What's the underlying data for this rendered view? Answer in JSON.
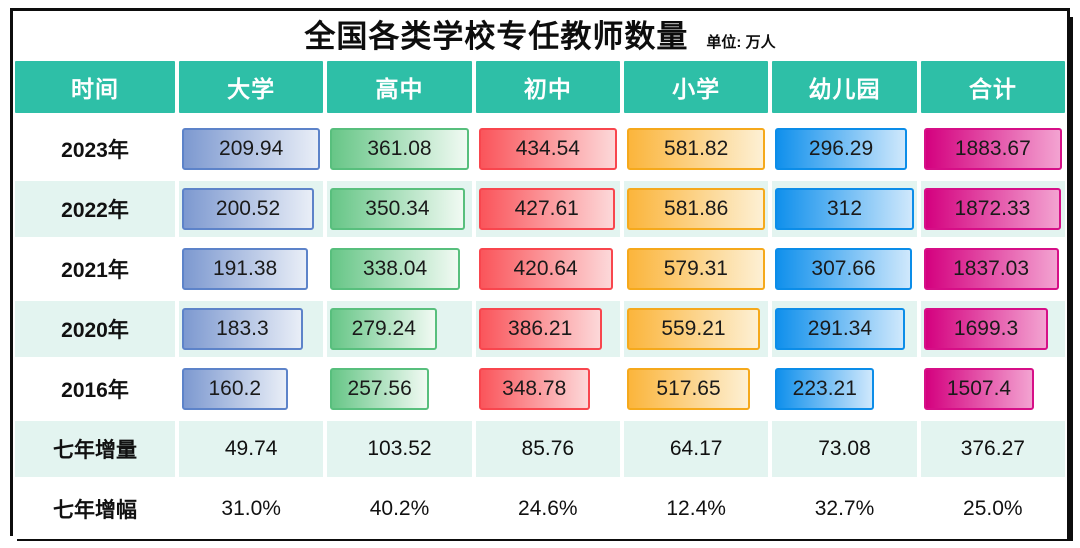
{
  "title": "全国各类学校专任教师数量",
  "unit": "单位: 万人",
  "colors": {
    "header_bg": "#2ebfa7",
    "row_bg": "#ffffff",
    "row_alt_bg": "#e3f4f0",
    "frame_border": "#0d0d0d",
    "bar_text": "#1a1a1a",
    "bar_palettes": [
      {
        "name": "university-blue",
        "border": "#5d83c9",
        "start": "#7d99d0",
        "end": "#e9eef7"
      },
      {
        "name": "highschool-green",
        "border": "#58bf7d",
        "start": "#67c687",
        "end": "#f1faf3"
      },
      {
        "name": "middleschool-red",
        "border": "#f8464e",
        "start": "#fa555b",
        "end": "#fcd8d9"
      },
      {
        "name": "primary-orange",
        "border": "#f5a91c",
        "start": "#fbb53c",
        "end": "#fdf0d4"
      },
      {
        "name": "kindergarten-azure",
        "border": "#0c8de8",
        "start": "#1090ec",
        "end": "#cfe8fc"
      },
      {
        "name": "total-magenta",
        "border": "#d60f87",
        "start": "#d4017f",
        "end": "#f3a3d1"
      }
    ]
  },
  "chart_data": {
    "type": "table",
    "title": "全国各类学校专任教师数量",
    "unit": "万人",
    "columns": [
      "时间",
      "大学",
      "高中",
      "初中",
      "小学",
      "幼儿园",
      "合计"
    ],
    "rows": [
      {
        "label": "2023年",
        "values": [
          209.94,
          361.08,
          434.54,
          581.82,
          296.29,
          1883.67
        ]
      },
      {
        "label": "2022年",
        "values": [
          200.52,
          350.34,
          427.61,
          581.86,
          312,
          1872.33
        ]
      },
      {
        "label": "2021年",
        "values": [
          191.38,
          338.04,
          420.64,
          579.31,
          307.66,
          1837.03
        ]
      },
      {
        "label": "2020年",
        "values": [
          183.3,
          279.24,
          386.21,
          559.21,
          291.34,
          1699.3
        ]
      },
      {
        "label": "2016年",
        "values": [
          160.2,
          257.56,
          348.78,
          517.65,
          223.21,
          1507.4
        ]
      }
    ],
    "summary_rows": [
      {
        "label": "七年增量",
        "values": [
          "49.74",
          "103.52",
          "85.76",
          "64.17",
          "73.08",
          "376.27"
        ]
      },
      {
        "label": "七年增幅",
        "values": [
          "31.0%",
          "40.2%",
          "24.6%",
          "12.4%",
          "32.7%",
          "25.0%"
        ]
      }
    ],
    "layout": {
      "bars_scaled_per_column": true,
      "bar_alignment": "left",
      "row_striping": "alternate mint/white"
    }
  }
}
